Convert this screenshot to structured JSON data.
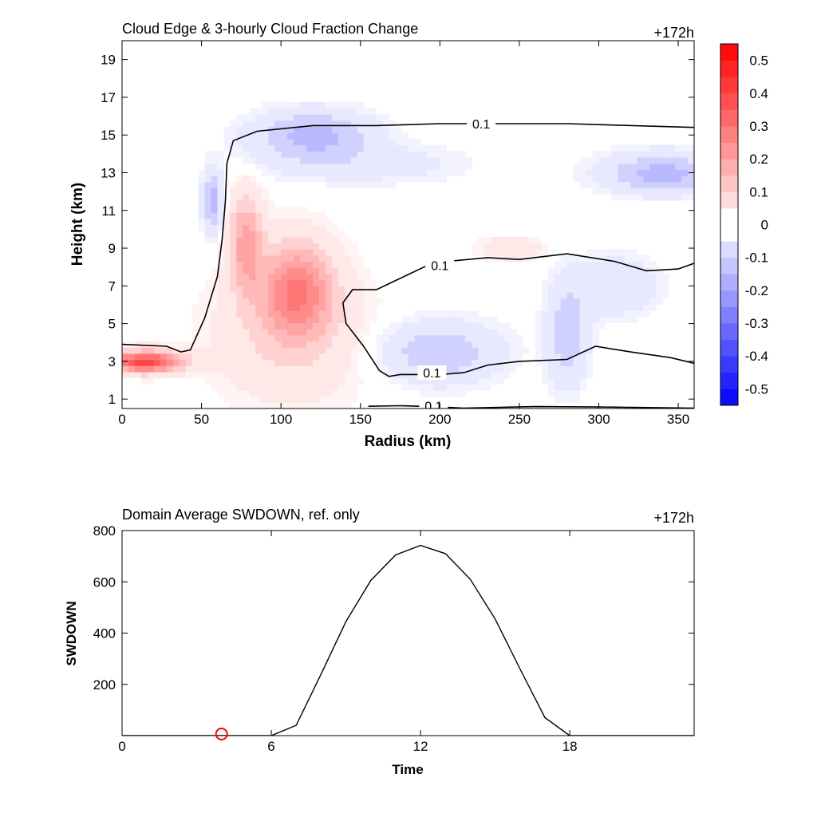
{
  "chart_data": [
    {
      "type": "heatmap",
      "title": "Cloud Edge & 3-hourly Cloud Fraction Change",
      "time_label": "+172h",
      "xlabel": "Radius (km)",
      "ylabel": "Height (km)",
      "xlim": [
        0,
        360
      ],
      "ylim": [
        0.5,
        20
      ],
      "x_ticks": [
        0,
        50,
        100,
        150,
        200,
        250,
        300,
        350
      ],
      "y_ticks": [
        1,
        3,
        5,
        7,
        9,
        11,
        13,
        15,
        17,
        19
      ],
      "colorbar": {
        "levels": [
          -0.55,
          -0.5,
          -0.45,
          -0.4,
          -0.35,
          -0.3,
          -0.25,
          -0.2,
          -0.15,
          -0.1,
          -0.05,
          0.05,
          0.1,
          0.15,
          0.2,
          0.25,
          0.3,
          0.35,
          0.4,
          0.45,
          0.5,
          0.55
        ],
        "tick_labels": [
          "0.5",
          "0.4",
          "0.3",
          "0.2",
          "0.1",
          "0",
          "-0.1",
          "-0.2",
          "-0.3",
          "-0.4",
          "-0.5"
        ],
        "tick_values": [
          0.5,
          0.4,
          0.3,
          0.2,
          0.1,
          0,
          -0.1,
          -0.2,
          -0.3,
          -0.4,
          -0.5
        ],
        "min_color": "#0000ff",
        "max_color": "#ff0000",
        "mid_color": "#ffffff"
      },
      "features": [
        {
          "name": "pos1",
          "x": 15,
          "y": 3.0,
          "rx": 22,
          "ry": 0.55,
          "value": 0.4
        },
        {
          "name": "pos2",
          "x": 110,
          "y": 6.8,
          "rx": 22,
          "ry": 2.4,
          "value": 0.25
        },
        {
          "name": "pos3",
          "x": 78,
          "y": 9.3,
          "rx": 10,
          "ry": 2.5,
          "value": 0.2
        },
        {
          "name": "pos4",
          "x": 105,
          "y": 4.5,
          "rx": 45,
          "ry": 3.5,
          "value": 0.08
        },
        {
          "name": "pos5",
          "x": 245,
          "y": 9.0,
          "rx": 20,
          "ry": 0.6,
          "value": 0.06
        },
        {
          "name": "neg1",
          "x": 57,
          "y": 11.5,
          "rx": 6,
          "ry": 1.5,
          "value": -0.15
        },
        {
          "name": "neg2",
          "x": 120,
          "y": 15.0,
          "rx": 35,
          "ry": 1.2,
          "value": -0.15
        },
        {
          "name": "neg3",
          "x": 200,
          "y": 3.5,
          "rx": 35,
          "ry": 1.5,
          "value": -0.12
        },
        {
          "name": "neg4",
          "x": 280,
          "y": 4.5,
          "rx": 12,
          "ry": 2.5,
          "value": -0.12
        },
        {
          "name": "neg5",
          "x": 340,
          "y": 13.0,
          "rx": 35,
          "ry": 1.0,
          "value": -0.15
        },
        {
          "name": "neg6",
          "x": 310,
          "y": 7.0,
          "rx": 25,
          "ry": 1.5,
          "value": -0.07
        },
        {
          "name": "neg7",
          "x": 150,
          "y": 13.5,
          "rx": 60,
          "ry": 1.0,
          "value": -0.05
        }
      ],
      "contours": [
        {
          "level": "0.1",
          "points": [
            [
              0,
              3.9
            ],
            [
              28,
              3.8
            ],
            [
              37,
              3.5
            ],
            [
              43,
              3.6
            ],
            [
              52,
              5.3
            ],
            [
              60,
              7.5
            ],
            [
              63,
              9.5
            ],
            [
              65,
              11.5
            ],
            [
              66,
              13.5
            ],
            [
              70,
              14.7
            ],
            [
              85,
              15.2
            ],
            [
              120,
              15.5
            ],
            [
              160,
              15.5
            ],
            [
              200,
              15.6
            ],
            [
              280,
              15.6
            ],
            [
              360,
              15.4
            ]
          ],
          "label": {
            "x": 226,
            "y": 15.6
          }
        },
        {
          "level": "0.1",
          "points": [
            [
              360,
              8.2
            ],
            [
              350,
              7.9
            ],
            [
              330,
              7.8
            ],
            [
              310,
              8.3
            ],
            [
              280,
              8.7
            ],
            [
              250,
              8.4
            ],
            [
              230,
              8.5
            ],
            [
              205,
              8.3
            ],
            [
              190,
              8.0
            ],
            [
              170,
              7.2
            ],
            [
              160,
              6.8
            ],
            [
              145,
              6.8
            ],
            [
              139,
              6.1
            ],
            [
              141,
              5.0
            ],
            [
              152,
              3.8
            ],
            [
              162,
              2.5
            ],
            [
              168,
              2.2
            ],
            [
              175,
              2.3
            ],
            [
              200,
              2.3
            ],
            [
              215,
              2.4
            ],
            [
              230,
              2.8
            ],
            [
              250,
              3.0
            ],
            [
              280,
              3.1
            ],
            [
              298,
              3.8
            ],
            [
              320,
              3.5
            ],
            [
              345,
              3.2
            ],
            [
              360,
              2.9
            ]
          ],
          "labels": [
            {
              "x": 200,
              "y": 8.1
            },
            {
              "x": 195,
              "y": 2.4
            }
          ]
        },
        {
          "level": "0.1",
          "points": [
            [
              155,
              0.62
            ],
            [
              175,
              0.65
            ],
            [
              195,
              0.6
            ],
            [
              215,
              0.52
            ],
            [
              260,
              0.6
            ],
            [
              300,
              0.58
            ],
            [
              360,
              0.52
            ]
          ],
          "label": {
            "x": 196,
            "y": 0.65
          }
        }
      ]
    },
    {
      "type": "line",
      "title": "Domain Average SWDOWN, ref. only",
      "time_label": "+172h",
      "xlabel": "Time",
      "ylabel": "SWDOWN",
      "xlim": [
        0,
        23
      ],
      "ylim": [
        0,
        800
      ],
      "x_ticks": [
        0,
        6,
        12,
        18
      ],
      "y_ticks": [
        200,
        400,
        600,
        800
      ],
      "x": [
        0,
        1,
        2,
        3,
        4,
        5,
        6,
        7,
        8,
        9,
        10,
        11,
        12,
        13,
        14,
        15,
        16,
        17,
        18,
        19,
        20,
        21,
        22,
        23
      ],
      "values": [
        0,
        0,
        0,
        0,
        0,
        0,
        0,
        40,
        240,
        445,
        605,
        705,
        742,
        710,
        610,
        455,
        260,
        70,
        0,
        0,
        0,
        0,
        0,
        0
      ],
      "line_color": "#000000",
      "marker": {
        "x": 4,
        "y": 0,
        "shape": "circle",
        "color": "#ff0000"
      }
    }
  ]
}
